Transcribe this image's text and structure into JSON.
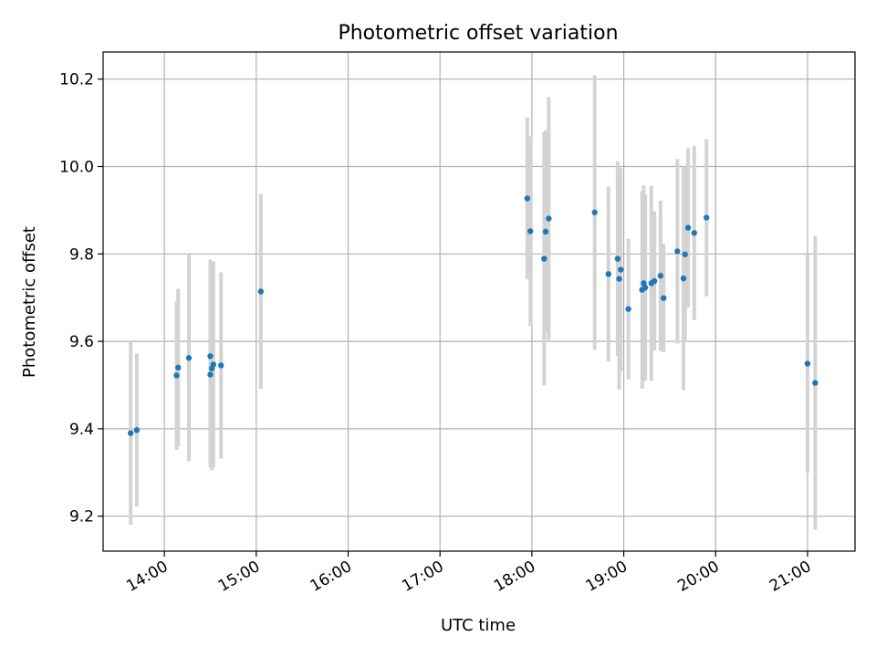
{
  "chart_data": {
    "type": "scatter",
    "title": "Photometric offset variation",
    "xlabel": "UTC time",
    "ylabel": "Photometric offset",
    "xlim": [
      "13:20",
      "21:31"
    ],
    "ylim": [
      9.12,
      10.262
    ],
    "x_ticks": [
      "14:00",
      "15:00",
      "16:00",
      "17:00",
      "18:00",
      "19:00",
      "20:00",
      "21:00"
    ],
    "y_ticks": [
      9.2,
      9.4,
      9.6,
      9.8,
      10.0,
      10.2
    ],
    "y_tick_labels": [
      "9.2",
      "9.4",
      "9.6",
      "9.8",
      "10.0",
      "10.2"
    ],
    "grid": true,
    "colors": {
      "points": "#1f77b4",
      "errorbars": "#d3d3d3",
      "grid": "#b0b0b0"
    },
    "points": [
      {
        "x": "13:38",
        "y": 9.39,
        "err": 0.21
      },
      {
        "x": "13:42",
        "y": 9.397,
        "err": 0.175
      },
      {
        "x": "14:08",
        "y": 9.522,
        "err": 0.17
      },
      {
        "x": "14:09",
        "y": 9.54,
        "err": 0.18
      },
      {
        "x": "14:16",
        "y": 9.562,
        "err": 0.236
      },
      {
        "x": "14:30",
        "y": 9.524,
        "err": 0.212
      },
      {
        "x": "14:30",
        "y": 9.566,
        "err": 0.221
      },
      {
        "x": "14:31",
        "y": 9.538,
        "err": 0.233
      },
      {
        "x": "14:32",
        "y": 9.547,
        "err": 0.236
      },
      {
        "x": "14:37",
        "y": 9.545,
        "err": 0.213
      },
      {
        "x": "15:03",
        "y": 9.714,
        "err": 0.223
      },
      {
        "x": "17:57",
        "y": 9.927,
        "err": 0.185
      },
      {
        "x": "17:59",
        "y": 9.852,
        "err": 0.217
      },
      {
        "x": "18:08",
        "y": 9.789,
        "err": 0.29
      },
      {
        "x": "18:09",
        "y": 9.851,
        "err": 0.232
      },
      {
        "x": "18:11",
        "y": 9.881,
        "err": 0.278
      },
      {
        "x": "18:41",
        "y": 9.895,
        "err": 0.314
      },
      {
        "x": "18:50",
        "y": 9.754,
        "err": 0.2
      },
      {
        "x": "18:56",
        "y": 9.789,
        "err": 0.223
      },
      {
        "x": "18:57",
        "y": 9.743,
        "err": 0.253
      },
      {
        "x": "18:58",
        "y": 9.764,
        "err": 0.232
      },
      {
        "x": "19:03",
        "y": 9.674,
        "err": 0.161
      },
      {
        "x": "19:12",
        "y": 9.718,
        "err": 0.226
      },
      {
        "x": "19:13",
        "y": 9.733,
        "err": 0.224
      },
      {
        "x": "19:14",
        "y": 9.723,
        "err": 0.213
      },
      {
        "x": "19:18",
        "y": 9.733,
        "err": 0.223
      },
      {
        "x": "19:20",
        "y": 9.738,
        "err": 0.159
      },
      {
        "x": "19:24",
        "y": 9.75,
        "err": 0.172
      },
      {
        "x": "19:26",
        "y": 9.699,
        "err": 0.124
      },
      {
        "x": "19:35",
        "y": 9.806,
        "err": 0.211
      },
      {
        "x": "19:39",
        "y": 9.744,
        "err": 0.256
      },
      {
        "x": "19:40",
        "y": 9.799,
        "err": 0.199
      },
      {
        "x": "19:42",
        "y": 9.86,
        "err": 0.182
      },
      {
        "x": "19:46",
        "y": 9.848,
        "err": 0.199
      },
      {
        "x": "19:54",
        "y": 9.883,
        "err": 0.18
      },
      {
        "x": "21:00",
        "y": 9.549,
        "err": 0.25
      },
      {
        "x": "21:05",
        "y": 9.505,
        "err": 0.336
      }
    ]
  }
}
